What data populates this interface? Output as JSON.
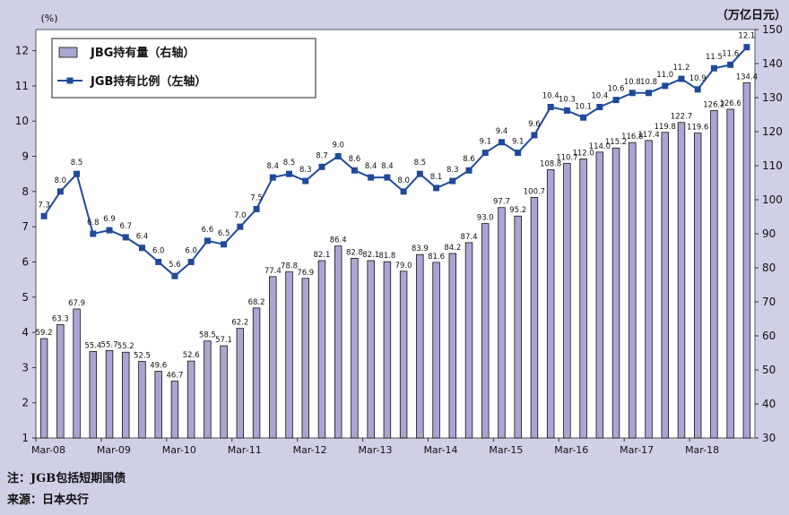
{
  "chart_data": {
    "type": "bar",
    "left_axis_unit": "(%)",
    "right_axis_unit": "（万亿日元）",
    "left_ticks": [
      1,
      2,
      3,
      4,
      5,
      6,
      7,
      8,
      9,
      10,
      11,
      12
    ],
    "left_ylim": [
      1,
      12.6
    ],
    "right_ticks": [
      30,
      40,
      50,
      60,
      70,
      80,
      90,
      100,
      110,
      120,
      130,
      140,
      150
    ],
    "right_ylim": [
      30,
      150
    ],
    "x_tick_labels": [
      "Mar-08",
      "Mar-09",
      "Mar-10",
      "Mar-11",
      "Mar-12",
      "Mar-13",
      "Mar-14",
      "Mar-15",
      "Mar-16",
      "Mar-17",
      "Mar-18"
    ],
    "x_tick_positions": [
      0,
      4,
      8,
      12,
      16,
      20,
      24,
      28,
      32,
      36,
      40
    ],
    "series": [
      {
        "name": "JBG持有量（右轴）",
        "type": "bar",
        "axis": "right",
        "color": "#a9a6d2",
        "values": [
          59.2,
          63.3,
          67.9,
          55.4,
          55.7,
          55.2,
          52.5,
          49.6,
          46.7,
          52.6,
          58.5,
          57.1,
          62.2,
          68.2,
          77.4,
          78.8,
          76.9,
          82.1,
          86.4,
          82.8,
          82.1,
          81.8,
          79.0,
          83.9,
          81.6,
          84.2,
          87.4,
          93.0,
          97.7,
          95.2,
          100.7,
          108.8,
          110.7,
          112.0,
          114.0,
          115.2,
          116.8,
          117.4,
          119.8,
          122.7,
          119.6,
          126.2,
          126.6,
          134.4
        ],
        "labels": [
          "59.2",
          "63.3",
          "67.9",
          "55.4",
          "55.7",
          "55.2",
          "52.5",
          "49.6",
          "46.7",
          "52.6",
          "58.5",
          "57.1",
          "62.2",
          "68.2",
          "77.4",
          "78.8",
          "76.9",
          "82.1",
          "86.4",
          "82.8",
          "82.1",
          "81.8",
          "79.0",
          "83.9",
          "81.6",
          "84.2",
          "87.4",
          "93.0",
          "97.7",
          "95.2",
          "100.7",
          "108.8",
          "110.7",
          "112.0",
          "114.0",
          "115.2",
          "116.8",
          "117.4",
          "119.8",
          "122.7",
          "119.6",
          "126.2",
          "126.6",
          "134.4"
        ]
      },
      {
        "name": "JGB持有比例（左轴）",
        "type": "line",
        "axis": "left",
        "color": "#1f4a9a",
        "values": [
          7.3,
          8.0,
          8.5,
          6.8,
          6.9,
          6.7,
          6.4,
          6.0,
          5.6,
          6.0,
          6.6,
          6.5,
          7.0,
          7.5,
          8.4,
          8.5,
          8.3,
          8.7,
          9.0,
          8.6,
          8.4,
          8.4,
          8.0,
          8.5,
          8.1,
          8.3,
          8.6,
          9.1,
          9.4,
          9.1,
          9.6,
          10.4,
          10.3,
          10.1,
          10.4,
          10.6,
          10.8,
          10.8,
          11.0,
          11.2,
          10.9,
          11.5,
          11.6,
          12.1
        ],
        "labels": [
          "7.3",
          "8.0",
          "8.5",
          "6.8",
          "6.9",
          "6.7",
          "6.4",
          "6.0",
          "5.6",
          "6.0",
          "6.6",
          "6.5",
          "7.0",
          "7.5",
          "8.4",
          "8.5",
          "8.3",
          "8.7",
          "9.0",
          "8.6",
          "8.4",
          "8.4",
          "8.0",
          "8.5",
          "8.1",
          "8.3",
          "8.6",
          "9.1",
          "9.4",
          "9.1",
          "9.6",
          "10.4",
          "10.3",
          "10.1",
          "10.4",
          "10.6",
          "10.8",
          "10.8",
          "11.0",
          "11.2",
          "10.9",
          "11.5",
          "11.6",
          "12.1"
        ]
      }
    ],
    "legend": [
      "JBG持有量（右轴）",
      "JGB持有比例（左轴）"
    ],
    "legend_placement": "top-left",
    "grid": false
  },
  "notes": {
    "note": "注：JGB包括短期国债",
    "source": "来源：日本央行"
  }
}
